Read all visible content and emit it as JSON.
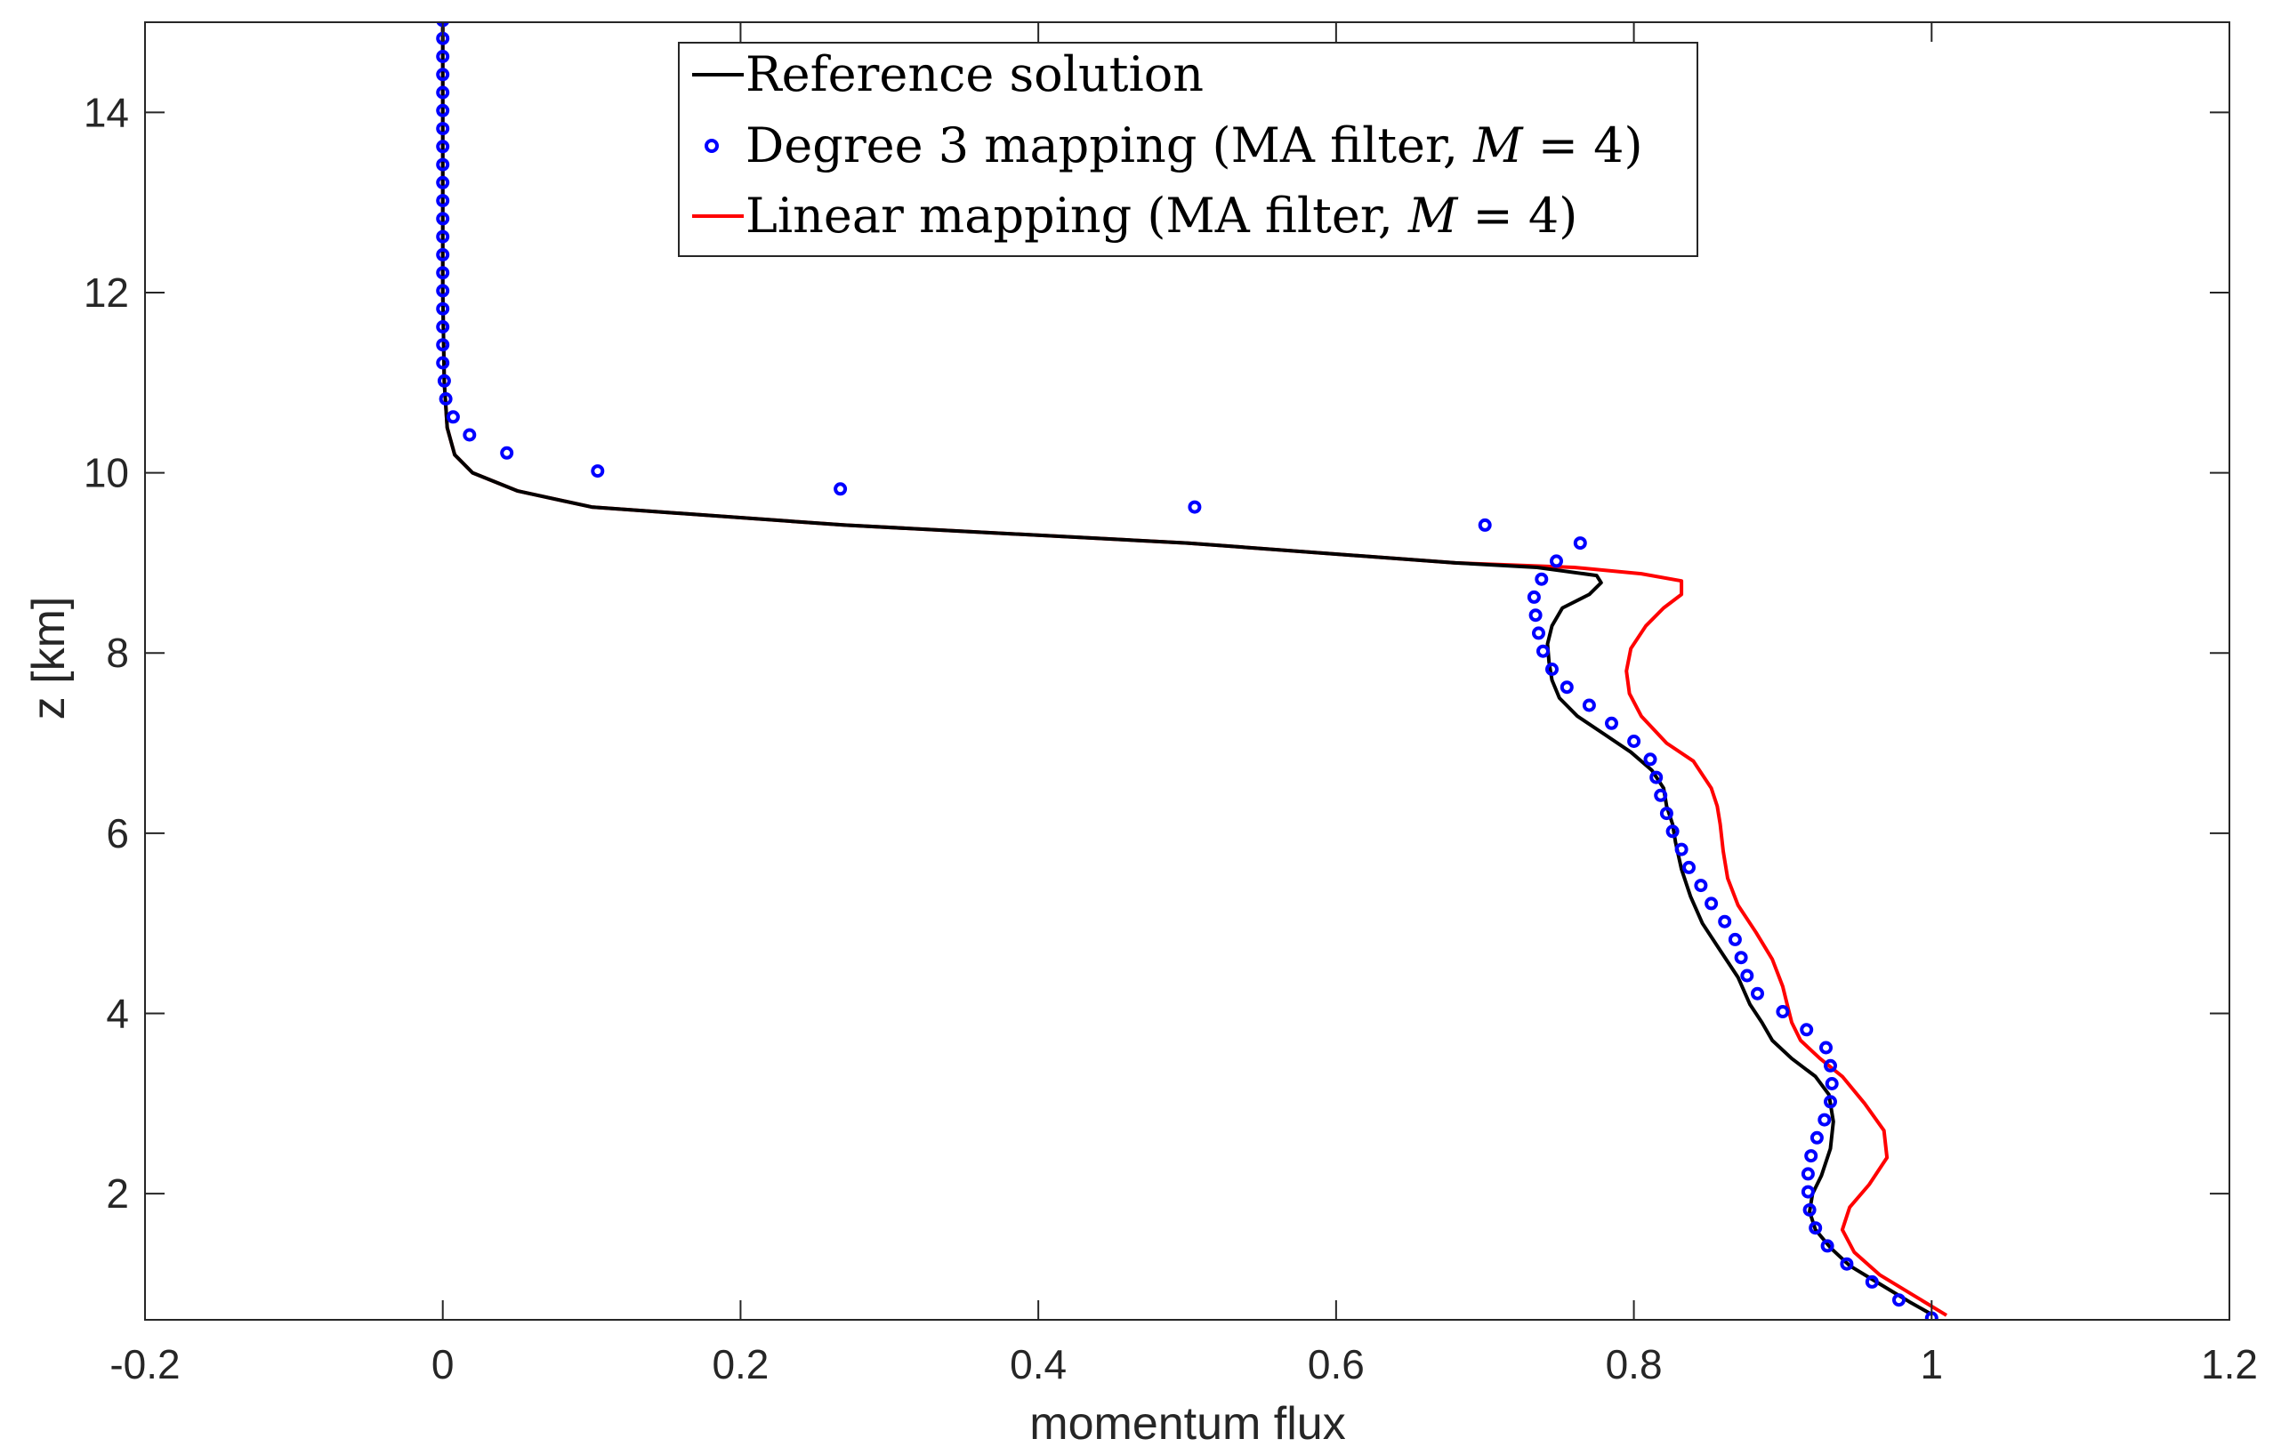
{
  "chart_data": {
    "type": "line",
    "title": "",
    "xlabel": "momentum flux",
    "ylabel": "z [km]",
    "xlim": [
      -0.2,
      1.2
    ],
    "ylim": [
      0.6,
      15
    ],
    "xticks": [
      -0.2,
      0,
      0.2,
      0.4,
      0.6,
      0.8,
      1,
      1.2
    ],
    "xtick_labels": [
      "-0.2",
      "0",
      "0.2",
      "0.4",
      "0.6",
      "0.8",
      "1",
      "1.2"
    ],
    "yticks": [
      2,
      4,
      6,
      8,
      10,
      12,
      14
    ],
    "ytick_labels": [
      "2",
      "4",
      "6",
      "8",
      "10",
      "12",
      "14"
    ],
    "grid": false,
    "legend_position": "top-center",
    "series": [
      {
        "name": "Reference solution",
        "style": "line",
        "color": "#000000",
        "x": [
          1.0,
          0.985,
          0.965,
          0.945,
          0.932,
          0.922,
          0.918,
          0.92,
          0.926,
          0.932,
          0.934,
          0.931,
          0.922,
          0.906,
          0.893,
          0.886,
          0.878,
          0.87,
          0.858,
          0.846,
          0.838,
          0.832,
          0.828,
          0.826,
          0.822,
          0.82,
          0.812,
          0.798,
          0.78,
          0.762,
          0.75,
          0.745,
          0.743,
          0.742,
          0.745,
          0.752,
          0.77,
          0.778,
          0.775,
          0.735,
          0.68,
          0.5,
          0.27,
          0.1,
          0.05,
          0.02,
          0.008,
          0.003,
          0.001,
          0.0,
          0.0
        ],
        "y": [
          0.66,
          0.8,
          1.0,
          1.2,
          1.4,
          1.6,
          1.8,
          2.0,
          2.2,
          2.5,
          2.8,
          3.1,
          3.3,
          3.5,
          3.7,
          3.9,
          4.1,
          4.4,
          4.7,
          5.0,
          5.3,
          5.6,
          5.9,
          6.1,
          6.3,
          6.5,
          6.7,
          6.9,
          7.1,
          7.3,
          7.5,
          7.7,
          7.9,
          8.1,
          8.3,
          8.5,
          8.65,
          8.78,
          8.86,
          8.95,
          9.0,
          9.22,
          9.42,
          9.62,
          9.8,
          10.0,
          10.2,
          10.5,
          11.0,
          12.0,
          15.0
        ]
      },
      {
        "name": "Degree 3 mapping (MA filter, M = 4)",
        "legend_prefix": "Degree 3 mapping (MA filter, ",
        "legend_math": "M",
        "legend_suffix": " = 4)",
        "style": "markers",
        "color": "#0000ff",
        "x": [
          1.0,
          0.978,
          0.96,
          0.943,
          0.93,
          0.922,
          0.918,
          0.917,
          0.917,
          0.919,
          0.923,
          0.928,
          0.932,
          0.933,
          0.932,
          0.929,
          0.916,
          0.9,
          0.883,
          0.876,
          0.872,
          0.868,
          0.861,
          0.852,
          0.845,
          0.837,
          0.832,
          0.826,
          0.822,
          0.818,
          0.815,
          0.811,
          0.8,
          0.785,
          0.77,
          0.755,
          0.745,
          0.739,
          0.736,
          0.734,
          0.733,
          0.738,
          0.748,
          0.764,
          0.7,
          0.505,
          0.267,
          0.104,
          0.043,
          0.018,
          0.007,
          0.002,
          0.001,
          0.0,
          0.0,
          0.0,
          0.0,
          0.0,
          0.0,
          0.0,
          0.0,
          0.0,
          0.0,
          0.0,
          0.0,
          0.0,
          0.0,
          0.0,
          0.0,
          0.0,
          0.0,
          0.0,
          0.0
        ],
        "y": [
          0.62,
          0.82,
          1.02,
          1.22,
          1.42,
          1.62,
          1.82,
          2.02,
          2.22,
          2.42,
          2.62,
          2.82,
          3.02,
          3.22,
          3.42,
          3.62,
          3.82,
          4.02,
          4.22,
          4.42,
          4.62,
          4.82,
          5.02,
          5.22,
          5.42,
          5.62,
          5.82,
          6.02,
          6.22,
          6.42,
          6.62,
          6.82,
          7.02,
          7.22,
          7.42,
          7.62,
          7.82,
          8.02,
          8.22,
          8.42,
          8.62,
          8.82,
          9.02,
          9.22,
          9.42,
          9.62,
          9.82,
          10.02,
          10.22,
          10.42,
          10.62,
          10.82,
          11.02,
          11.22,
          11.42,
          11.62,
          11.82,
          12.02,
          12.22,
          12.42,
          12.62,
          12.82,
          13.02,
          13.22,
          13.42,
          13.62,
          13.82,
          14.02,
          14.22,
          14.42,
          14.62,
          14.82,
          15.02
        ]
      },
      {
        "name": "Linear mapping (MA filter, M = 4)",
        "legend_prefix": "Linear mapping (MA filter, ",
        "legend_math": "M",
        "legend_suffix": " = 4)",
        "style": "line",
        "color": "#ff0000",
        "x": [
          1.01,
          0.99,
          0.965,
          0.948,
          0.94,
          0.945,
          0.958,
          0.97,
          0.968,
          0.955,
          0.94,
          0.925,
          0.912,
          0.906,
          0.903,
          0.9,
          0.893,
          0.882,
          0.87,
          0.863,
          0.86,
          0.858,
          0.856,
          0.852,
          0.84,
          0.822,
          0.805,
          0.797,
          0.795,
          0.798,
          0.808,
          0.82,
          0.832,
          0.832,
          0.805,
          0.76,
          0.68,
          0.5,
          0.27,
          0.1,
          0.05,
          0.02,
          0.008,
          0.003,
          0.001,
          0.0,
          0.0
        ],
        "y": [
          0.65,
          0.85,
          1.1,
          1.35,
          1.6,
          1.85,
          2.1,
          2.4,
          2.7,
          3.0,
          3.3,
          3.5,
          3.7,
          3.9,
          4.1,
          4.3,
          4.6,
          4.9,
          5.2,
          5.5,
          5.8,
          6.1,
          6.3,
          6.5,
          6.8,
          7.0,
          7.3,
          7.55,
          7.8,
          8.05,
          8.3,
          8.5,
          8.65,
          8.8,
          8.88,
          8.95,
          9.0,
          9.22,
          9.42,
          9.62,
          9.8,
          10.0,
          10.2,
          10.5,
          11.0,
          12.0,
          15.0
        ]
      }
    ]
  }
}
